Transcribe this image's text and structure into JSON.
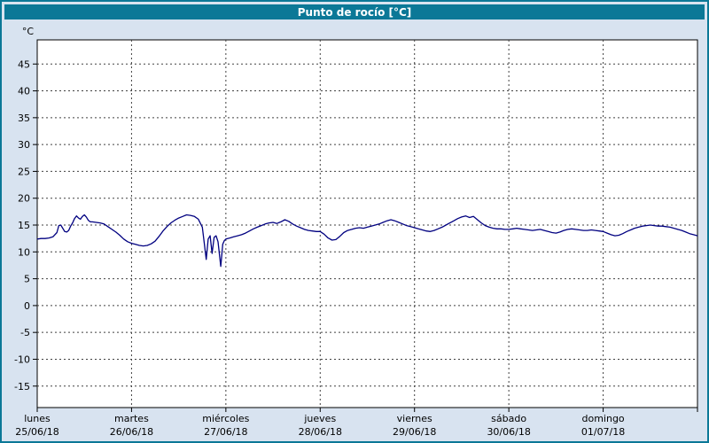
{
  "title": "Punto de rocío [°C]",
  "colors": {
    "frame": "#0b7897",
    "background": "#d8e3f0",
    "plot_bg": "#ffffff",
    "grid": "#404040",
    "axis": "#000000",
    "line": "#000080",
    "title_text": "#ffffff"
  },
  "chart_data": {
    "type": "line",
    "title": "Punto de rocío [°C]",
    "ylabel": "°C",
    "ylim": [
      -15,
      45
    ],
    "ytick_step": 5,
    "grid": true,
    "legend": false,
    "x_range_days": 7,
    "x_days": [
      {
        "name": "lunes",
        "date": "25/06/18"
      },
      {
        "name": "martes",
        "date": "26/06/18"
      },
      {
        "name": "miércoles",
        "date": "27/06/18"
      },
      {
        "name": "jueves",
        "date": "28/06/18"
      },
      {
        "name": "viernes",
        "date": "29/06/18"
      },
      {
        "name": "sábado",
        "date": "30/06/18"
      },
      {
        "name": "domingo",
        "date": "01/07/18"
      }
    ],
    "series": [
      {
        "name": "Punto de rocío",
        "color": "#000080",
        "points": [
          [
            0,
            12.4
          ],
          [
            1,
            12.5
          ],
          [
            2,
            12.5
          ],
          [
            3,
            12.6
          ],
          [
            4,
            12.8
          ],
          [
            5,
            13.6
          ],
          [
            5.5,
            14.9
          ],
          [
            6,
            15.0
          ],
          [
            6.5,
            14.4
          ],
          [
            7,
            13.8
          ],
          [
            7.5,
            13.7
          ],
          [
            8,
            14.0
          ],
          [
            8.5,
            14.8
          ],
          [
            9,
            15.4
          ],
          [
            9.5,
            16.2
          ],
          [
            10,
            16.7
          ],
          [
            10.5,
            16.3
          ],
          [
            11,
            16.1
          ],
          [
            11.5,
            16.6
          ],
          [
            12,
            16.9
          ],
          [
            12.5,
            16.5
          ],
          [
            13,
            15.9
          ],
          [
            13.5,
            15.6
          ],
          [
            14,
            15.6
          ],
          [
            15,
            15.5
          ],
          [
            16,
            15.4
          ],
          [
            17,
            15.2
          ],
          [
            18,
            14.7
          ],
          [
            19,
            14.2
          ],
          [
            20,
            13.7
          ],
          [
            21,
            13.1
          ],
          [
            22,
            12.4
          ],
          [
            23,
            11.9
          ],
          [
            24,
            11.6
          ],
          [
            25,
            11.4
          ],
          [
            26,
            11.2
          ],
          [
            27,
            11.1
          ],
          [
            28,
            11.2
          ],
          [
            29,
            11.5
          ],
          [
            30,
            12.0
          ],
          [
            31,
            12.9
          ],
          [
            32,
            13.9
          ],
          [
            33,
            14.7
          ],
          [
            34,
            15.4
          ],
          [
            35,
            15.9
          ],
          [
            36,
            16.3
          ],
          [
            37,
            16.6
          ],
          [
            38,
            16.9
          ],
          [
            39,
            16.8
          ],
          [
            40,
            16.6
          ],
          [
            41,
            16.1
          ],
          [
            42,
            14.6
          ],
          [
            42.5,
            11.6
          ],
          [
            43,
            8.6
          ],
          [
            43.5,
            12.4
          ],
          [
            44,
            13.0
          ],
          [
            44.5,
            9.7
          ],
          [
            45,
            12.7
          ],
          [
            45.5,
            13.0
          ],
          [
            46,
            11.9
          ],
          [
            46.7,
            7.3
          ],
          [
            47.2,
            11.4
          ],
          [
            47.6,
            12.1
          ],
          [
            48,
            12.4
          ],
          [
            49,
            12.6
          ],
          [
            50,
            12.8
          ],
          [
            51,
            13.0
          ],
          [
            52,
            13.2
          ],
          [
            53,
            13.5
          ],
          [
            54,
            13.9
          ],
          [
            55,
            14.3
          ],
          [
            56,
            14.6
          ],
          [
            57,
            14.9
          ],
          [
            58,
            15.2
          ],
          [
            59,
            15.4
          ],
          [
            60,
            15.5
          ],
          [
            61,
            15.3
          ],
          [
            62,
            15.6
          ],
          [
            63,
            16.0
          ],
          [
            64,
            15.7
          ],
          [
            65,
            15.2
          ],
          [
            66,
            14.8
          ],
          [
            67,
            14.5
          ],
          [
            68,
            14.2
          ],
          [
            69,
            14.0
          ],
          [
            70,
            13.9
          ],
          [
            71,
            13.8
          ],
          [
            72,
            13.8
          ],
          [
            73,
            13.3
          ],
          [
            74,
            12.6
          ],
          [
            75,
            12.2
          ],
          [
            76,
            12.3
          ],
          [
            77,
            12.9
          ],
          [
            78,
            13.6
          ],
          [
            79,
            14.0
          ],
          [
            80,
            14.2
          ],
          [
            81,
            14.4
          ],
          [
            82,
            14.5
          ],
          [
            83,
            14.4
          ],
          [
            84,
            14.6
          ],
          [
            85,
            14.8
          ],
          [
            86,
            15.0
          ],
          [
            87,
            15.2
          ],
          [
            88,
            15.5
          ],
          [
            89,
            15.8
          ],
          [
            90,
            16.0
          ],
          [
            91,
            15.8
          ],
          [
            92,
            15.5
          ],
          [
            93,
            15.2
          ],
          [
            94,
            14.9
          ],
          [
            95,
            14.7
          ],
          [
            96,
            14.5
          ],
          [
            97,
            14.3
          ],
          [
            98,
            14.1
          ],
          [
            99,
            13.9
          ],
          [
            100,
            13.8
          ],
          [
            101,
            14.0
          ],
          [
            102,
            14.3
          ],
          [
            103,
            14.6
          ],
          [
            104,
            15.0
          ],
          [
            105,
            15.4
          ],
          [
            106,
            15.8
          ],
          [
            107,
            16.2
          ],
          [
            108,
            16.5
          ],
          [
            109,
            16.7
          ],
          [
            110,
            16.4
          ],
          [
            111,
            16.6
          ],
          [
            112,
            16.0
          ],
          [
            113,
            15.4
          ],
          [
            114,
            14.9
          ],
          [
            115,
            14.6
          ],
          [
            116,
            14.4
          ],
          [
            117,
            14.3
          ],
          [
            118,
            14.3
          ],
          [
            119,
            14.2
          ],
          [
            120,
            14.2
          ],
          [
            121,
            14.3
          ],
          [
            122,
            14.4
          ],
          [
            123,
            14.3
          ],
          [
            124,
            14.2
          ],
          [
            125,
            14.1
          ],
          [
            126,
            14.0
          ],
          [
            127,
            14.1
          ],
          [
            128,
            14.2
          ],
          [
            129,
            14.0
          ],
          [
            130,
            13.8
          ],
          [
            131,
            13.6
          ],
          [
            132,
            13.5
          ],
          [
            133,
            13.7
          ],
          [
            134,
            14.0
          ],
          [
            135,
            14.2
          ],
          [
            136,
            14.3
          ],
          [
            137,
            14.2
          ],
          [
            138,
            14.1
          ],
          [
            139,
            14.0
          ],
          [
            140,
            14.0
          ],
          [
            141,
            14.1
          ],
          [
            142,
            14.0
          ],
          [
            143,
            13.9
          ],
          [
            144,
            13.8
          ],
          [
            145,
            13.5
          ],
          [
            146,
            13.2
          ],
          [
            147,
            13.0
          ],
          [
            148,
            13.1
          ],
          [
            149,
            13.4
          ],
          [
            150,
            13.8
          ],
          [
            151,
            14.1
          ],
          [
            152,
            14.4
          ],
          [
            153,
            14.6
          ],
          [
            154,
            14.8
          ],
          [
            155,
            14.9
          ],
          [
            156,
            15.0
          ],
          [
            157,
            14.9
          ],
          [
            158,
            14.8
          ],
          [
            159,
            14.8
          ],
          [
            160,
            14.7
          ],
          [
            161,
            14.6
          ],
          [
            162,
            14.4
          ],
          [
            163,
            14.2
          ],
          [
            164,
            14.0
          ],
          [
            165,
            13.7
          ],
          [
            166,
            13.4
          ],
          [
            167,
            13.2
          ],
          [
            168,
            13.0
          ]
        ]
      }
    ]
  }
}
